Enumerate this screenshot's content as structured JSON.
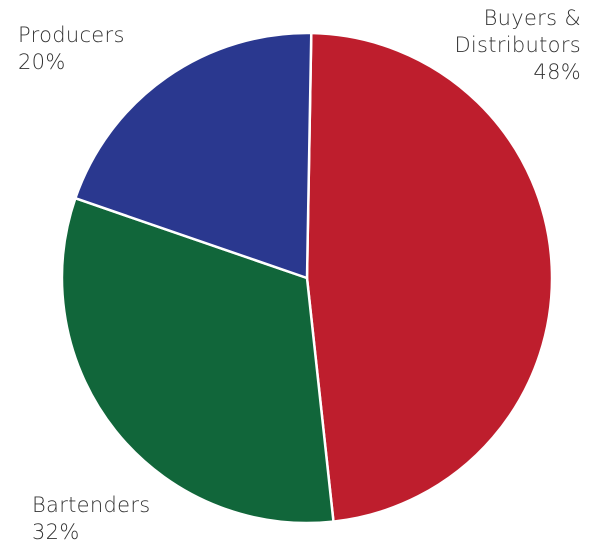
{
  "chart_data": {
    "type": "pie",
    "slices": [
      {
        "label_lines": [
          "Buyers &",
          "Distributors"
        ],
        "percent_label": "48%",
        "value": 48,
        "color": "#be1e2d"
      },
      {
        "label_lines": [
          "Bartenders"
        ],
        "percent_label": "32%",
        "value": 32,
        "color": "#11663a"
      },
      {
        "label_lines": [
          "Producers"
        ],
        "percent_label": "20%",
        "value": 20,
        "color": "#2a388f"
      }
    ],
    "start_angle_deg": -89,
    "direction": "clockwise",
    "slice_border_color": "#ffffff"
  }
}
